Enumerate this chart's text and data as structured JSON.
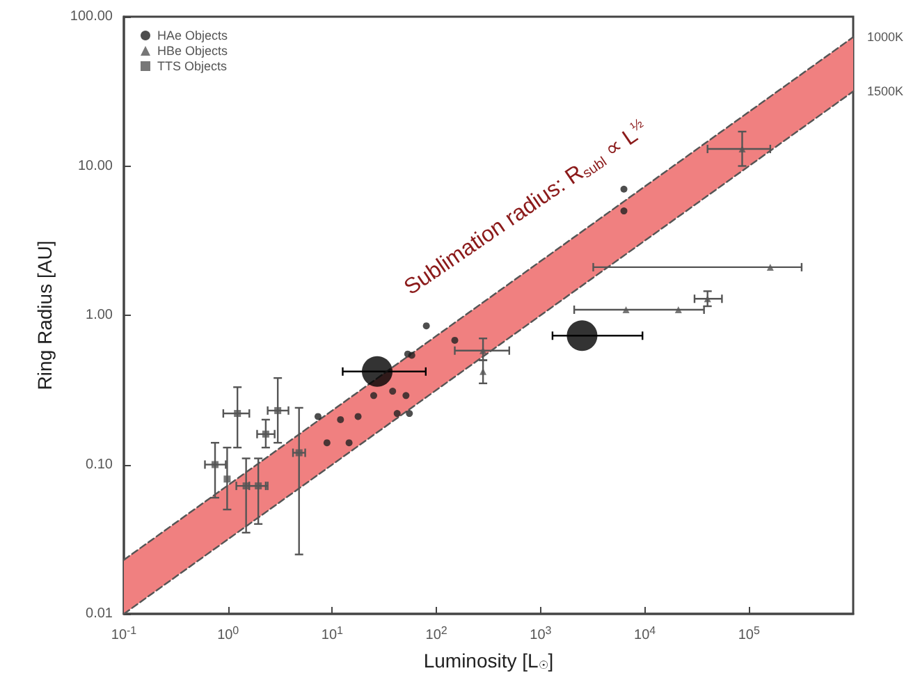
{
  "chart_data": {
    "type": "scatter",
    "xlabel": "Luminosity [L$_{☉}$]",
    "ylabel": "Ring Radius [AU]",
    "annotations": [
      "Sublimation radius: R$_{subl}$ ∝ L$^{½}$"
    ],
    "log": "xy",
    "legend": "top left",
    "grid": false,
    "xlim": [
      0.1,
      1000000
    ],
    "ylim": [
      0.01,
      100
    ],
    "xticks": [
      {
        "value": 0.1,
        "label": "10$^{-1}$"
      },
      {
        "value": 1,
        "label": "10$^{0}$"
      },
      {
        "value": 10,
        "label": "10$^{1}$"
      },
      {
        "value": 100,
        "label": "10$^{2}$"
      },
      {
        "value": 1000,
        "label": "10$^{3}$"
      },
      {
        "value": 10000,
        "label": "10$^{4}$"
      },
      {
        "value": 100000,
        "label": "10$^{5}$"
      }
    ],
    "yticks": [
      {
        "value": 0.01,
        "label": "0.01"
      },
      {
        "value": 0.1,
        "label": "0.10"
      },
      {
        "value": 1,
        "label": "1.00"
      },
      {
        "value": 10,
        "label": "10.00"
      },
      {
        "value": 100,
        "label": "100.00"
      }
    ],
    "series": [
      {
        "type": "line",
        "color": "#f08080",
        "x": [
          0.1,
          1000000
        ],
        "values": [
          null,
          null
        ],
        "lower": [
          0.01,
          31.6
        ],
        "upper": [
          0.023,
          73
        ]
      },
      {
        "name": "1000K",
        "type": "line",
        "color": "#555555",
        "line_style": "dashed",
        "marker": "none",
        "x": [
          0.1,
          1000000
        ],
        "values": [
          0.023,
          73
        ]
      },
      {
        "name": "1500K",
        "type": "line",
        "color": "#555555",
        "line_style": "dashed",
        "marker": "none",
        "x": [
          0.1,
          1000000
        ],
        "values": [
          0.01,
          31.6
        ]
      },
      {
        "name": "HAe Objects",
        "marker": "circle",
        "color": "#222222",
        "x": [
          7.3,
          8.9,
          12,
          14.5,
          17.7,
          25,
          38,
          51,
          42,
          55,
          58,
          80,
          53,
          150,
          6300,
          6300
        ],
        "values": [
          0.21,
          0.14,
          0.2,
          0.14,
          0.21,
          0.29,
          0.31,
          0.29,
          0.22,
          0.22,
          0.54,
          0.85,
          0.55,
          0.68,
          7.0,
          5.0
        ]
      },
      {
        "name": "HBe Objects",
        "marker": "triangle",
        "color": "#555555",
        "x": [
          280,
          280,
          86000,
          160000,
          21000,
          6600,
          40000
        ],
        "values": [
          0.58,
          0.42,
          13,
          2.1,
          1.09,
          1.09,
          1.29
        ],
        "xerrors": [
          [
            150,
            500
          ],
          null,
          [
            40000,
            160000
          ],
          [
            3200,
            320000
          ],
          [
            2100,
            37000
          ],
          null,
          [
            30000,
            55000
          ]
        ],
        "errors": [
          [
            0.5,
            0.7
          ],
          [
            0.35,
            0.5
          ],
          [
            10,
            17
          ],
          null,
          null,
          null,
          [
            1.15,
            1.45
          ]
        ]
      },
      {
        "name": "TTS Objects",
        "marker": "square",
        "color": "#555555",
        "x": [
          0.75,
          0.98,
          1.23,
          1.49,
          1.95,
          2.3,
          3.0,
          4.8
        ],
        "values": [
          0.1,
          0.08,
          0.22,
          0.072,
          0.072,
          0.16,
          0.23,
          0.12
        ],
        "errors": [
          [
            0.06,
            0.14
          ],
          [
            0.05,
            0.13
          ],
          [
            0.13,
            0.33
          ],
          [
            0.035,
            0.11
          ],
          [
            0.04,
            0.11
          ],
          [
            0.13,
            0.2
          ],
          [
            0.14,
            0.38
          ],
          [
            0.025,
            0.24
          ]
        ],
        "xerrors": [
          [
            0.6,
            0.95
          ],
          null,
          [
            0.9,
            1.6
          ],
          [
            1.2,
            2.3
          ],
          [
            1.6,
            2.4
          ],
          [
            1.9,
            2.8
          ],
          [
            2.4,
            3.8
          ],
          [
            4.2,
            5.5
          ]
        ]
      },
      {
        "type": "bubble",
        "marker": "circle",
        "color": "#000000",
        "x": [
          27,
          2500
        ],
        "values": [
          0.42,
          0.73
        ],
        "sizes": [
          1,
          1
        ],
        "xerrors": [
          [
            12.6,
            79
          ],
          [
            1300,
            9500
          ]
        ]
      }
    ]
  }
}
